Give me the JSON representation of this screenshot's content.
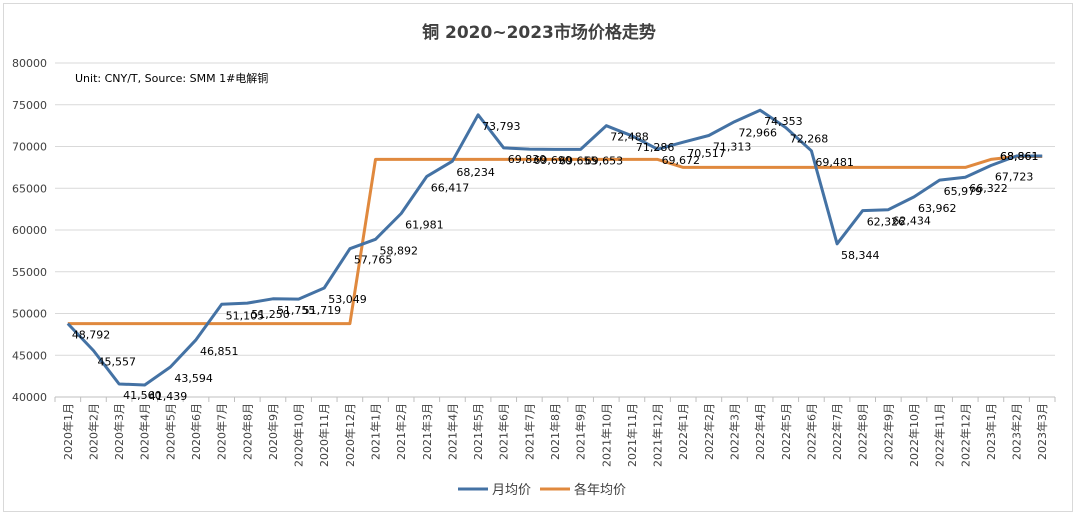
{
  "chart_data": {
    "type": "line",
    "title": "铜 2020~2023市场价格走势",
    "annotation": "Unit: CNY/T, Source: SMM 1#电解铜",
    "xlabel": "",
    "ylabel": "",
    "ylim": [
      40000,
      80000
    ],
    "y_ticks": [
      40000,
      45000,
      50000,
      55000,
      60000,
      65000,
      70000,
      75000,
      80000
    ],
    "grid": true,
    "legend_position": "bottom",
    "categories": [
      "2020年1月",
      "2020年2月",
      "2020年3月",
      "2020年4月",
      "2020年5月",
      "2020年6月",
      "2020年7月",
      "2020年8月",
      "2020年9月",
      "2020年10月",
      "2020年11月",
      "2020年12月",
      "2021年1月",
      "2021年2月",
      "2021年3月",
      "2021年4月",
      "2021年5月",
      "2021年6月",
      "2021年7月",
      "2021年8月",
      "2021年9月",
      "2021年10月",
      "2021年11月",
      "2021年12月",
      "2022年1月",
      "2022年2月",
      "2022年3月",
      "2022年4月",
      "2022年5月",
      "2022年6月",
      "2022年7月",
      "2022年8月",
      "2022年9月",
      "2022年10月",
      "2022年11月",
      "2022年12月",
      "2023年1月",
      "2023年2月",
      "2023年3月"
    ],
    "series": [
      {
        "name": "月均价",
        "color": "#4472a4",
        "values": [
          48792,
          45557,
          41560,
          41439,
          43594,
          46851,
          51105,
          51250,
          51755,
          51719,
          53049,
          57765,
          58892,
          61981,
          66417,
          68234,
          73793,
          69830,
          69690,
          69655,
          69653,
          72488,
          71286,
          69672,
          70517,
          71313,
          72966,
          74353,
          72268,
          69481,
          58344,
          62326,
          62434,
          63962,
          65979,
          66322,
          67723,
          68861,
          68861
        ],
        "labels": [
          "48,792",
          "45,557",
          "41,560",
          "41,439",
          "43,594",
          "46,851",
          "51,105",
          "51,250",
          "51,755",
          "51,719",
          "53,049",
          "57,765",
          "58,892",
          "61,981",
          "66,417",
          "68,234",
          "73,793",
          "69,830",
          "69,690",
          "69,655",
          "69,653",
          "72,488",
          "71,286",
          "69,672",
          "70,517",
          "71,313",
          "72,966",
          "74,353",
          "72,268",
          "69,481",
          "58,344",
          "62,326",
          "62,434",
          "63,962",
          "65,979",
          "66,322",
          "67,723",
          "68,861",
          "68,861"
        ]
      },
      {
        "name": "各年均价",
        "color": "#e0893e",
        "values": [
          48792,
          48792,
          48792,
          48792,
          48792,
          48792,
          48792,
          48792,
          48792,
          48792,
          48792,
          48792,
          68450,
          68450,
          68450,
          68450,
          68450,
          68450,
          68450,
          68450,
          68450,
          68450,
          68450,
          68450,
          67500,
          67500,
          67500,
          67500,
          67500,
          67500,
          67500,
          67500,
          67500,
          67500,
          67500,
          67500,
          68450,
          68800,
          68800
        ]
      }
    ]
  }
}
